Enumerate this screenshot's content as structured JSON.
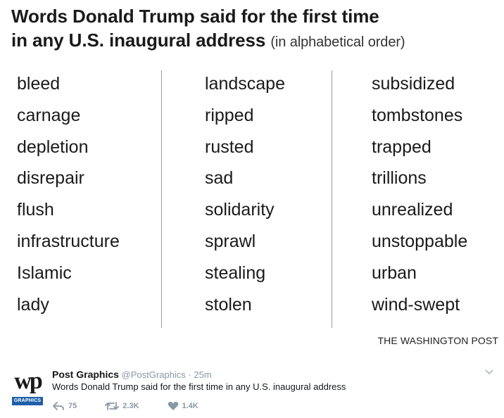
{
  "title": {
    "main_line1": "Words Donald Trump said for the first time",
    "main_line2": "in any U.S. inaugural address",
    "subtitle": "(in alphabetical order)"
  },
  "columns": [
    [
      "bleed",
      "carnage",
      "depletion",
      "disrepair",
      "flush",
      "infrastructure",
      "Islamic",
      "lady"
    ],
    [
      "landscape",
      "ripped",
      "rusted",
      "sad",
      "solidarity",
      "sprawl",
      "stealing",
      "stolen"
    ],
    [
      "subsidized",
      "tombstones",
      "trapped",
      "trillions",
      "unrealized",
      "unstoppable",
      "urban",
      "wind-swept"
    ]
  ],
  "credit": "THE WASHINGTON POST",
  "tweet": {
    "avatar_logo": "wp",
    "avatar_badge": "GRAPHICS",
    "author_name": "Post Graphics",
    "handle": "@PostGraphics",
    "separator": "·",
    "time": "25m",
    "text": "Words Donald Trump said for the first time in any U.S. inaugural address",
    "replies": "75",
    "retweets": "2.3K",
    "likes": "1.4K",
    "colors": {
      "muted": "#8899a6",
      "badge": "#1d5fa8"
    }
  }
}
